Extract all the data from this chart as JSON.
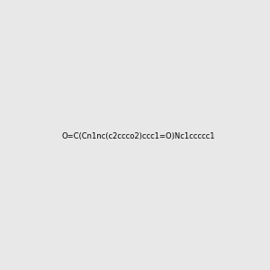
{
  "smiles": "O=C(Cn1nc(c2ccco2)ccc1=O)Nc1ccccc1",
  "image_size": 300,
  "background_color": "#e8e8e8"
}
